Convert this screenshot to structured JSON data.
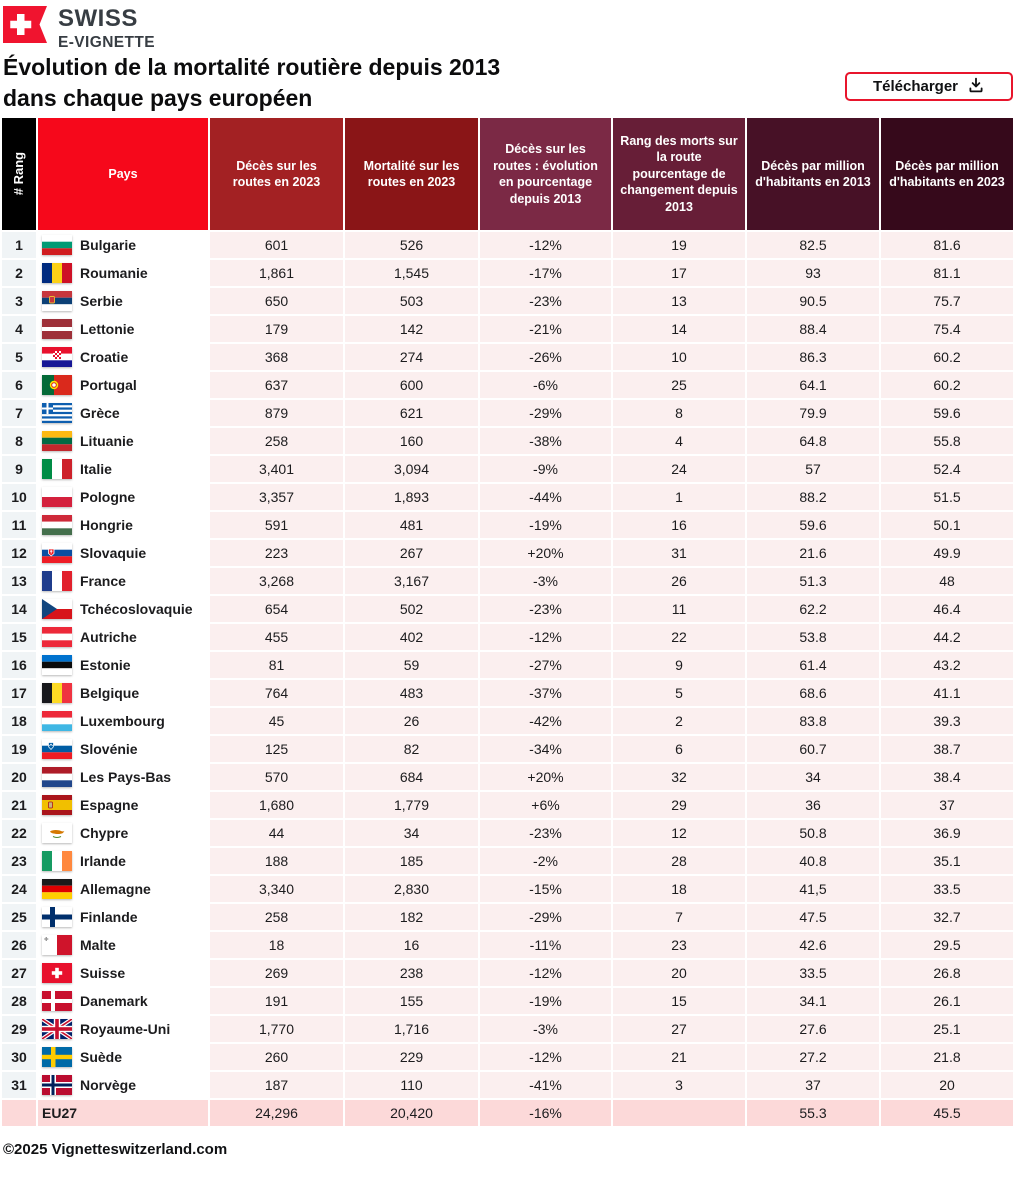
{
  "brand": {
    "line1": "SWISS",
    "line2": "E-VIGNETTE",
    "logo_icon": "swiss-flag-banner-icon",
    "logo_color": "#f0142f"
  },
  "title": {
    "line1": "Évolution de la mortalité routière depuis 2013",
    "line2": "dans chaque pays européen"
  },
  "download_button": {
    "label": "Télécharger",
    "icon": "download-icon",
    "border_color": "#e8152c"
  },
  "table": {
    "columns": [
      {
        "id": "rank",
        "label": "# Rang",
        "bg": "#000000"
      },
      {
        "id": "pays",
        "label": "Pays",
        "bg": "#f6081b"
      },
      {
        "id": "deces2023",
        "label": "Décès sur les routes en 2023",
        "bg": "#a32123"
      },
      {
        "id": "mortalite2023",
        "label": "Mortalité sur les routes en 2023",
        "bg": "#8a1517"
      },
      {
        "id": "evolution",
        "label": "Décès sur les routes : évolution en pourcentage depuis 2013",
        "bg": "#7b2945"
      },
      {
        "id": "rangchange",
        "label": "Rang des morts sur la route pourcentage de changement depuis 2013",
        "bg": "#671e37"
      },
      {
        "id": "million2013",
        "label": "Décès par million d'habitants en 2013",
        "bg": "#471126"
      },
      {
        "id": "million2023",
        "label": "Décès par million d'habitants en 2023",
        "bg": "#36091b"
      }
    ],
    "rows": [
      {
        "rank": "1",
        "flag": "bulgarie",
        "pays": "Bulgarie",
        "deces2023": "601",
        "mortalite2023": "526",
        "evolution": "-12%",
        "rangchange": "19",
        "million2013": "82.5",
        "million2023": "81.6"
      },
      {
        "rank": "2",
        "flag": "roumanie",
        "pays": "Roumanie",
        "deces2023": "1,861",
        "mortalite2023": "1,545",
        "evolution": "-17%",
        "rangchange": "17",
        "million2013": "93",
        "million2023": "81.1"
      },
      {
        "rank": "3",
        "flag": "serbie",
        "pays": "Serbie",
        "deces2023": "650",
        "mortalite2023": "503",
        "evolution": "-23%",
        "rangchange": "13",
        "million2013": "90.5",
        "million2023": "75.7"
      },
      {
        "rank": "4",
        "flag": "lettonie",
        "pays": "Lettonie",
        "deces2023": "179",
        "mortalite2023": "142",
        "evolution": "-21%",
        "rangchange": "14",
        "million2013": "88.4",
        "million2023": "75.4"
      },
      {
        "rank": "5",
        "flag": "croatie",
        "pays": "Croatie",
        "deces2023": "368",
        "mortalite2023": "274",
        "evolution": "-26%",
        "rangchange": "10",
        "million2013": "86.3",
        "million2023": "60.2"
      },
      {
        "rank": "6",
        "flag": "portugal",
        "pays": "Portugal",
        "deces2023": "637",
        "mortalite2023": "600",
        "evolution": "-6%",
        "rangchange": "25",
        "million2013": "64.1",
        "million2023": "60.2"
      },
      {
        "rank": "7",
        "flag": "grece",
        "pays": "Grèce",
        "deces2023": "879",
        "mortalite2023": "621",
        "evolution": "-29%",
        "rangchange": "8",
        "million2013": "79.9",
        "million2023": "59.6"
      },
      {
        "rank": "8",
        "flag": "lituanie",
        "pays": "Lituanie",
        "deces2023": "258",
        "mortalite2023": "160",
        "evolution": "-38%",
        "rangchange": "4",
        "million2013": "64.8",
        "million2023": "55.8"
      },
      {
        "rank": "9",
        "flag": "italie",
        "pays": "Italie",
        "deces2023": "3,401",
        "mortalite2023": "3,094",
        "evolution": "-9%",
        "rangchange": "24",
        "million2013": "57",
        "million2023": "52.4"
      },
      {
        "rank": "10",
        "flag": "pologne",
        "pays": "Pologne",
        "deces2023": "3,357",
        "mortalite2023": "1,893",
        "evolution": "-44%",
        "rangchange": "1",
        "million2013": "88.2",
        "million2023": "51.5"
      },
      {
        "rank": "11",
        "flag": "hongrie",
        "pays": "Hongrie",
        "deces2023": "591",
        "mortalite2023": "481",
        "evolution": "-19%",
        "rangchange": "16",
        "million2013": "59.6",
        "million2023": "50.1"
      },
      {
        "rank": "12",
        "flag": "slovaquie",
        "pays": "Slovaquie",
        "deces2023": "223",
        "mortalite2023": "267",
        "evolution": "+20%",
        "rangchange": "31",
        "million2013": "21.6",
        "million2023": "49.9"
      },
      {
        "rank": "13",
        "flag": "france",
        "pays": "France",
        "deces2023": "3,268",
        "mortalite2023": "3,167",
        "evolution": "-3%",
        "rangchange": "26",
        "million2013": "51.3",
        "million2023": "48"
      },
      {
        "rank": "14",
        "flag": "tcheque",
        "pays": "Tchécoslovaquie",
        "deces2023": "654",
        "mortalite2023": "502",
        "evolution": "-23%",
        "rangchange": "11",
        "million2013": "62.2",
        "million2023": "46.4"
      },
      {
        "rank": "15",
        "flag": "autriche",
        "pays": "Autriche",
        "deces2023": "455",
        "mortalite2023": "402",
        "evolution": "-12%",
        "rangchange": "22",
        "million2013": "53.8",
        "million2023": "44.2"
      },
      {
        "rank": "16",
        "flag": "estonie",
        "pays": "Estonie",
        "deces2023": "81",
        "mortalite2023": "59",
        "evolution": "-27%",
        "rangchange": "9",
        "million2013": "61.4",
        "million2023": "43.2"
      },
      {
        "rank": "17",
        "flag": "belgique",
        "pays": "Belgique",
        "deces2023": "764",
        "mortalite2023": "483",
        "evolution": "-37%",
        "rangchange": "5",
        "million2013": "68.6",
        "million2023": "41.1"
      },
      {
        "rank": "18",
        "flag": "luxembourg",
        "pays": "Luxembourg",
        "deces2023": "45",
        "mortalite2023": "26",
        "evolution": "-42%",
        "rangchange": "2",
        "million2013": "83.8",
        "million2023": "39.3"
      },
      {
        "rank": "19",
        "flag": "slovenie",
        "pays": "Slovénie",
        "deces2023": "125",
        "mortalite2023": "82",
        "evolution": "-34%",
        "rangchange": "6",
        "million2013": "60.7",
        "million2023": "38.7"
      },
      {
        "rank": "20",
        "flag": "paysbas",
        "pays": "Les Pays-Bas",
        "deces2023": "570",
        "mortalite2023": "684",
        "evolution": "+20%",
        "rangchange": "32",
        "million2013": "34",
        "million2023": "38.4"
      },
      {
        "rank": "21",
        "flag": "espagne",
        "pays": "Espagne",
        "deces2023": "1,680",
        "mortalite2023": "1,779",
        "evolution": "+6%",
        "rangchange": "29",
        "million2013": "36",
        "million2023": "37"
      },
      {
        "rank": "22",
        "flag": "chypre",
        "pays": "Chypre",
        "deces2023": "44",
        "mortalite2023": "34",
        "evolution": "-23%",
        "rangchange": "12",
        "million2013": "50.8",
        "million2023": "36.9"
      },
      {
        "rank": "23",
        "flag": "irlande",
        "pays": "Irlande",
        "deces2023": "188",
        "mortalite2023": "185",
        "evolution": "-2%",
        "rangchange": "28",
        "million2013": "40.8",
        "million2023": "35.1"
      },
      {
        "rank": "24",
        "flag": "allemagne",
        "pays": "Allemagne",
        "deces2023": "3,340",
        "mortalite2023": "2,830",
        "evolution": "-15%",
        "rangchange": "18",
        "million2013": "41,5",
        "million2023": "33.5"
      },
      {
        "rank": "25",
        "flag": "finlande",
        "pays": "Finlande",
        "deces2023": "258",
        "mortalite2023": "182",
        "evolution": "-29%",
        "rangchange": "7",
        "million2013": "47.5",
        "million2023": "32.7"
      },
      {
        "rank": "26",
        "flag": "malte",
        "pays": "Malte",
        "deces2023": "18",
        "mortalite2023": "16",
        "evolution": "-11%",
        "rangchange": "23",
        "million2013": "42.6",
        "million2023": "29.5"
      },
      {
        "rank": "27",
        "flag": "suisse",
        "pays": "Suisse",
        "deces2023": "269",
        "mortalite2023": "238",
        "evolution": "-12%",
        "rangchange": "20",
        "million2013": "33.5",
        "million2023": "26.8"
      },
      {
        "rank": "28",
        "flag": "danemark",
        "pays": "Danemark",
        "deces2023": "191",
        "mortalite2023": "155",
        "evolution": "-19%",
        "rangchange": "15",
        "million2013": "34.1",
        "million2023": "26.1"
      },
      {
        "rank": "29",
        "flag": "royaumeuni",
        "pays": "Royaume-Uni",
        "deces2023": "1,770",
        "mortalite2023": "1,716",
        "evolution": "-3%",
        "rangchange": "27",
        "million2013": "27.6",
        "million2023": "25.1"
      },
      {
        "rank": "30",
        "flag": "suede",
        "pays": "Suède",
        "deces2023": "260",
        "mortalite2023": "229",
        "evolution": "-12%",
        "rangchange": "21",
        "million2013": "27.2",
        "million2023": "21.8"
      },
      {
        "rank": "31",
        "flag": "norvege",
        "pays": "Norvège",
        "deces2023": "187",
        "mortalite2023": "110",
        "evolution": "-41%",
        "rangchange": "3",
        "million2013": "37",
        "million2023": "20"
      }
    ],
    "total_row": {
      "rank": "",
      "label": "EU27",
      "deces2023": "24,296",
      "mortalite2023": "20,420",
      "evolution": "-16%",
      "rangchange": "",
      "million2013": "55.3",
      "million2023": "45.5"
    }
  },
  "footer": {
    "copyright": "©2025 Vignetteswitzerland.com"
  },
  "colors": {
    "row_data_bg": "#fbefef",
    "row_rank_bg": "#f0f4f6",
    "total_row_bg": "#fcd9d9",
    "accent_red": "#e8152c"
  }
}
